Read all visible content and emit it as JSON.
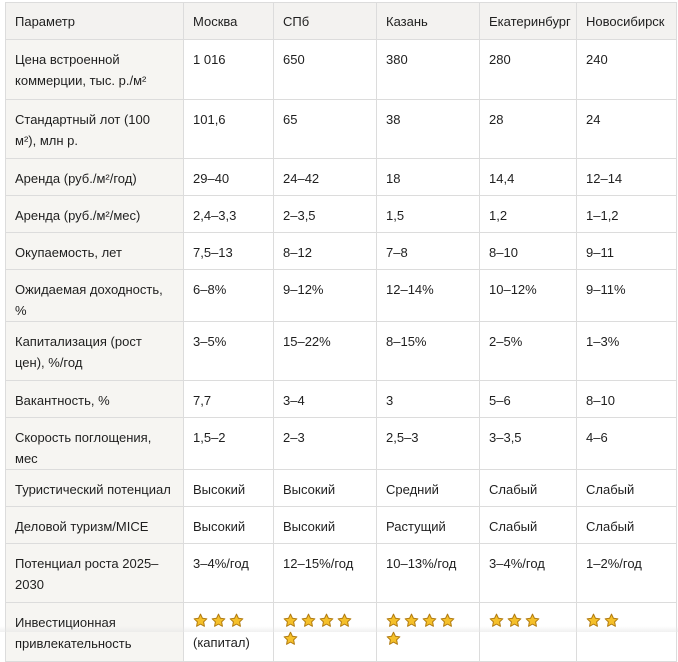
{
  "table": {
    "headers": [
      "Параметр",
      "Москва",
      "СПб",
      "Казань",
      "Екатеринбург",
      "Новосибирск"
    ],
    "rows": [
      {
        "label": "Цена встроенной коммерции, тыс. р./м²",
        "cells": [
          "1 016",
          "650",
          "380",
          "280",
          "240"
        ]
      },
      {
        "label": "Стандартный лот (100 м²), млн р.",
        "cells": [
          "101,6",
          "65",
          "38",
          "28",
          "24"
        ]
      },
      {
        "label": "Аренда (руб./м²/год)",
        "cells": [
          "29–40",
          "24–42",
          "18",
          "14,4",
          "12–14"
        ]
      },
      {
        "label": "Аренда (руб./м²/мес)",
        "cells": [
          "2,4–3,3",
          "2–3,5",
          "1,5",
          "1,2",
          "1–1,2"
        ]
      },
      {
        "label": "Окупаемость, лет",
        "cells": [
          "7,5–13",
          "8–12",
          "7–8",
          "8–10",
          "9–11"
        ]
      },
      {
        "label": "Ожидаемая доходность, %",
        "cells": [
          "6–8%",
          "9–12%",
          "12–14%",
          "10–12%",
          "9–11%"
        ]
      },
      {
        "label": "Капитализация (рост цен), %/год",
        "cells": [
          "3–5%",
          "15–22%",
          "8–15%",
          "2–5%",
          "1–3%"
        ]
      },
      {
        "label": "Вакантность, %",
        "cells": [
          "7,7",
          "3–4",
          "3",
          "5–6",
          "8–10"
        ]
      },
      {
        "label": "Скорость поглощения, мес",
        "cells": [
          "1,5–2",
          "2–3",
          "2,5–3",
          "3–3,5",
          "4–6"
        ]
      },
      {
        "label": "Туристический потенциал",
        "cells": [
          "Высокий",
          "Высокий",
          "Средний",
          "Слабый",
          "Слабый"
        ]
      },
      {
        "label": "Деловой туризм/MICE",
        "cells": [
          "Высокий",
          "Высокий",
          "Растущий",
          "Слабый",
          "Слабый"
        ]
      },
      {
        "label": "Потенциал роста 2025–2030",
        "cells": [
          "3–4%/год",
          "12–15%/год",
          "10–13%/год",
          "3–4%/год",
          "1–2%/год"
        ]
      }
    ],
    "rating_row": {
      "label": "Инвестиционная привлекательность",
      "ratings": [
        3,
        5,
        5,
        3,
        2
      ],
      "notes": [
        "(капитал)",
        "",
        "",
        "",
        ""
      ],
      "star_icon": "star-icon",
      "star_color": "#f5c02a",
      "star_outline": "#b07a10"
    }
  }
}
